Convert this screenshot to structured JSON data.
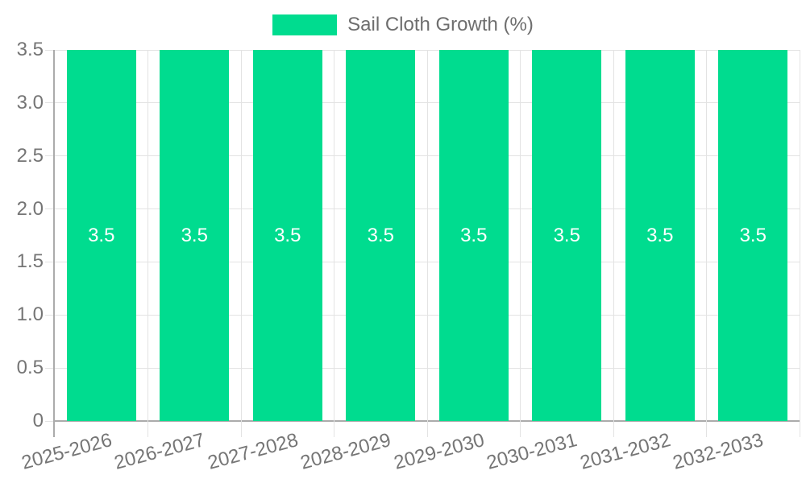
{
  "legend": {
    "label": "Sail Cloth Growth (%)"
  },
  "colors": {
    "bar": "#00DC8F",
    "bar_label": "#ffffff",
    "grid": "#e3e3e3",
    "axis": "#ababab",
    "tick_label": "#757575",
    "legend_text": "#6e6e6e",
    "background": "#ffffff"
  },
  "chart_data": {
    "type": "bar",
    "title": "",
    "xlabel": "",
    "ylabel": "",
    "categories": [
      "2025-2026",
      "2026-2027",
      "2027-2028",
      "2028-2029",
      "2029-2030",
      "2030-2031",
      "2031-2032",
      "2032-2033"
    ],
    "series": [
      {
        "name": "Sail Cloth Growth (%)",
        "color": "#00DC8F",
        "values": [
          3.5,
          3.5,
          3.5,
          3.5,
          3.5,
          3.5,
          3.5,
          3.5
        ]
      }
    ],
    "value_labels": [
      "3.5",
      "3.5",
      "3.5",
      "3.5",
      "3.5",
      "3.5",
      "3.5",
      "3.5"
    ],
    "ylim": [
      0,
      3.5
    ],
    "yticks": [
      {
        "value": 0,
        "label": "0"
      },
      {
        "value": 0.5,
        "label": "0.5"
      },
      {
        "value": 1,
        "label": "1.0"
      },
      {
        "value": 1.5,
        "label": "1.5"
      },
      {
        "value": 2,
        "label": "2.0"
      },
      {
        "value": 2.5,
        "label": "2.5"
      },
      {
        "value": 3,
        "label": "3.0"
      },
      {
        "value": 3.5,
        "label": "3.5"
      }
    ],
    "grid": true,
    "legend_position": "top"
  }
}
